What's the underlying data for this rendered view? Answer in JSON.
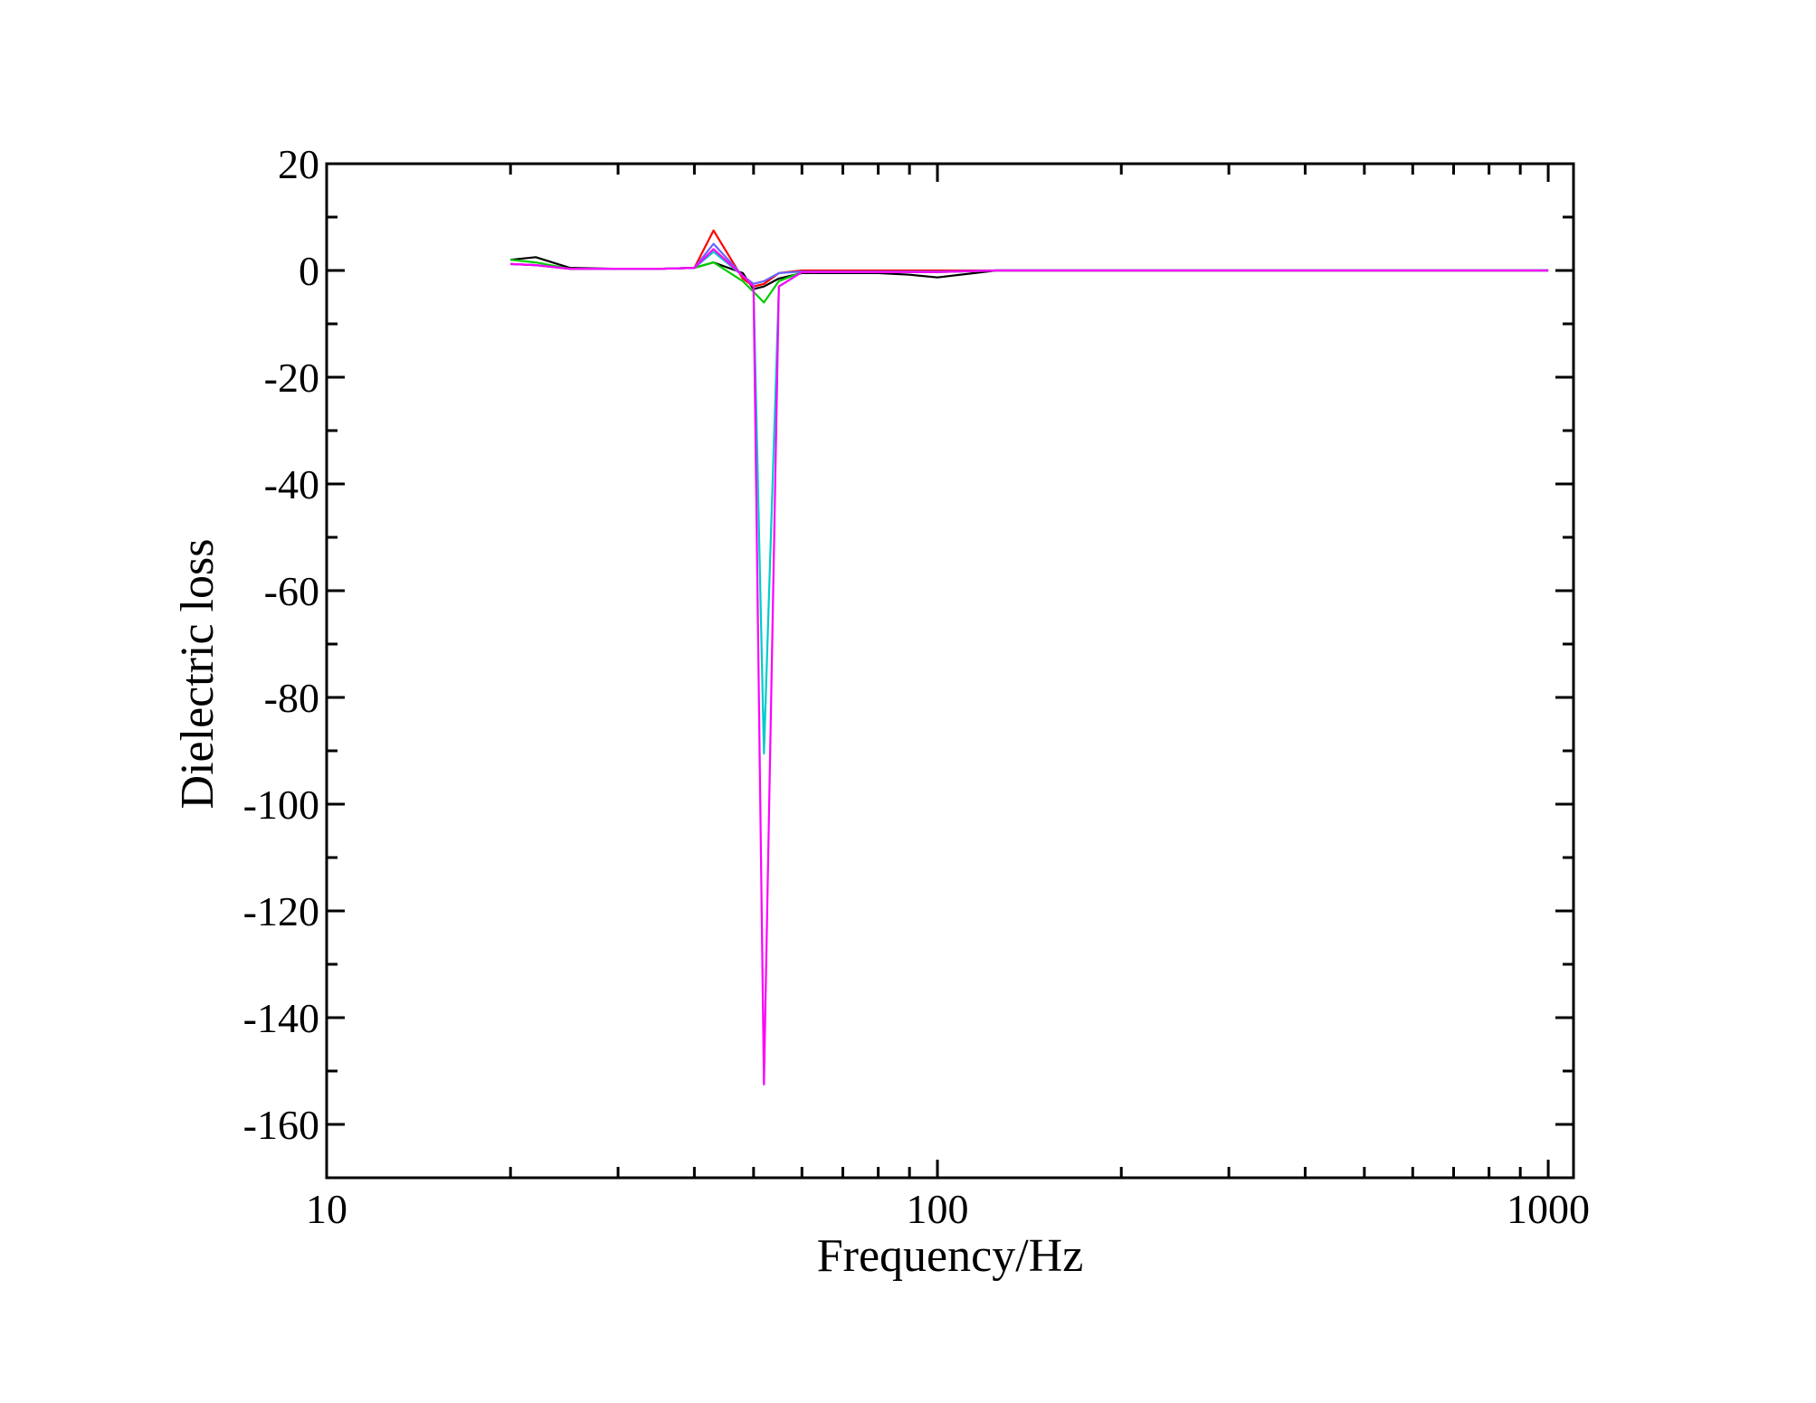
{
  "chart_data": {
    "type": "line",
    "title": "",
    "xlabel": "Frequency/Hz",
    "ylabel": "Dielectric loss",
    "x_scale": "log",
    "xlim": [
      10,
      1100
    ],
    "ylim": [
      -170,
      20
    ],
    "x_ticks": [
      10,
      100,
      1000
    ],
    "x_tick_labels": [
      "10",
      "100",
      "1000"
    ],
    "y_ticks": [
      20,
      0,
      -20,
      -40,
      -60,
      -80,
      -100,
      -120,
      -140,
      -160
    ],
    "y_tick_labels": [
      "20",
      "0",
      "-20",
      "-40",
      "-60",
      "-80",
      "-100",
      "-120",
      "-140",
      "-160"
    ],
    "grid": false,
    "legend": "none",
    "series": [
      {
        "color": "#000000",
        "x": [
          20,
          22,
          25,
          30,
          35,
          40,
          43,
          48,
          50,
          52,
          55,
          60,
          70,
          80,
          90,
          100,
          125,
          160,
          200,
          300,
          400,
          500,
          600,
          700,
          800,
          900,
          1000
        ],
        "y": [
          2,
          2.5,
          0.5,
          0.3,
          0.3,
          0.5,
          1.5,
          -0.5,
          -3.5,
          -3,
          -1.5,
          -0.5,
          -0.5,
          -0.5,
          -0.8,
          -1.3,
          0,
          0,
          0,
          0,
          0,
          0,
          0,
          0,
          0,
          0,
          0
        ]
      },
      {
        "color": "#00cc00",
        "x": [
          20,
          22,
          25,
          30,
          35,
          40,
          43,
          48,
          50,
          52,
          55,
          60,
          70,
          80,
          90,
          100,
          125,
          160,
          200,
          300,
          400,
          500,
          600,
          700,
          800,
          900,
          1000
        ],
        "y": [
          2,
          1.5,
          0.3,
          0.3,
          0.3,
          0.5,
          1.5,
          -2,
          -4,
          -6,
          -2,
          -0.3,
          -0.3,
          -0.3,
          -0.3,
          -0.3,
          0,
          0,
          0,
          0,
          0,
          0,
          0,
          0,
          0,
          0,
          0
        ]
      },
      {
        "color": "#ff0000",
        "x": [
          20,
          22,
          25,
          30,
          35,
          40,
          43,
          48,
          50,
          52,
          55,
          60,
          70,
          80,
          90,
          100,
          125,
          160,
          200,
          300,
          400,
          500,
          600,
          700,
          800,
          900,
          1000
        ],
        "y": [
          1.2,
          1,
          0.3,
          0.3,
          0.3,
          0.5,
          7.5,
          -1.5,
          -3,
          -2.5,
          -0.5,
          0,
          0,
          0,
          0,
          0,
          0,
          0,
          0,
          0,
          0,
          0,
          0,
          0,
          0,
          0,
          0
        ]
      },
      {
        "color": "#00cccc",
        "x": [
          20,
          22,
          25,
          30,
          35,
          40,
          43,
          48,
          50,
          52,
          55,
          60,
          70,
          80,
          90,
          100,
          125,
          160,
          200,
          300,
          400,
          500,
          600,
          700,
          800,
          900,
          1000
        ],
        "y": [
          1.2,
          1,
          0.3,
          0.3,
          0.3,
          0.5,
          3.5,
          -1,
          -3,
          -90.5,
          -3,
          -0.3,
          -0.3,
          -0.3,
          -0.3,
          -0.3,
          0,
          0,
          0,
          0,
          0,
          0,
          0,
          0,
          0,
          0,
          0
        ]
      },
      {
        "color": "#6666ff",
        "x": [
          20,
          22,
          25,
          30,
          35,
          40,
          43,
          48,
          50,
          52,
          55,
          60,
          70,
          80,
          90,
          100,
          125,
          160,
          200,
          300,
          400,
          500,
          600,
          700,
          800,
          900,
          1000
        ],
        "y": [
          1.2,
          1,
          0.3,
          0.3,
          0.3,
          0.5,
          5,
          -1,
          -2.5,
          -2,
          -0.5,
          -0.2,
          -0.2,
          -0.2,
          -0.2,
          -0.2,
          0,
          0,
          0,
          0,
          0,
          0,
          0,
          0,
          0,
          0,
          0
        ]
      },
      {
        "color": "#ff00ff",
        "x": [
          20,
          22,
          25,
          30,
          35,
          40,
          43,
          48,
          50,
          52,
          55,
          60,
          70,
          80,
          90,
          100,
          125,
          160,
          200,
          300,
          400,
          500,
          600,
          700,
          800,
          900,
          1000
        ],
        "y": [
          1.2,
          1,
          0.3,
          0.3,
          0.3,
          0.5,
          4,
          -1,
          -3,
          -152.5,
          -3,
          -0.3,
          -0.3,
          -0.3,
          -0.3,
          -0.3,
          0,
          0,
          0,
          0,
          0,
          0,
          0,
          0,
          0,
          0,
          0
        ]
      }
    ]
  }
}
